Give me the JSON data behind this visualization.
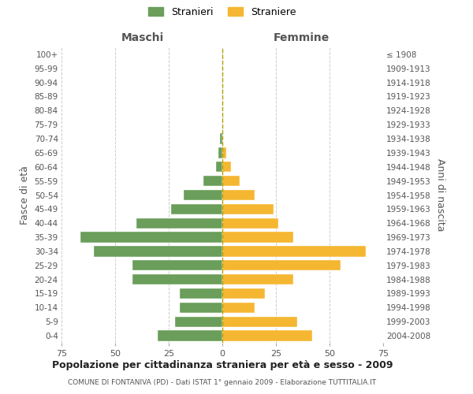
{
  "age_groups_bottom_to_top": [
    "0-4",
    "5-9",
    "10-14",
    "15-19",
    "20-24",
    "25-29",
    "30-34",
    "35-39",
    "40-44",
    "45-49",
    "50-54",
    "55-59",
    "60-64",
    "65-69",
    "70-74",
    "75-79",
    "80-84",
    "85-89",
    "90-94",
    "95-99",
    "100+"
  ],
  "birth_years_bottom_to_top": [
    "2004-2008",
    "1999-2003",
    "1994-1998",
    "1989-1993",
    "1984-1988",
    "1979-1983",
    "1974-1978",
    "1969-1973",
    "1964-1968",
    "1959-1963",
    "1954-1958",
    "1949-1953",
    "1944-1948",
    "1939-1943",
    "1934-1938",
    "1929-1933",
    "1924-1928",
    "1919-1923",
    "1914-1918",
    "1909-1913",
    "≤ 1908"
  ],
  "maschi_bottom_to_top": [
    30,
    22,
    20,
    20,
    42,
    42,
    60,
    66,
    40,
    24,
    18,
    9,
    3,
    2,
    1,
    0,
    0,
    0,
    0,
    0,
    0
  ],
  "femmine_bottom_to_top": [
    42,
    35,
    15,
    20,
    33,
    55,
    67,
    33,
    26,
    24,
    15,
    8,
    4,
    2,
    0,
    0,
    0,
    0,
    0,
    0,
    0
  ],
  "maschi_color": "#6a9e5a",
  "femmine_color": "#f5b731",
  "title": "Popolazione per cittadinanza straniera per età e sesso - 2009",
  "subtitle": "COMUNE DI FONTANIVA (PD) - Dati ISTAT 1° gennaio 2009 - Elaborazione TUTTITALIA.IT",
  "label_maschi": "Maschi",
  "label_femmine": "Femmine",
  "ylabel_left": "Fasce di età",
  "ylabel_right": "Anni di nascita",
  "legend_stranieri": "Stranieri",
  "legend_straniere": "Straniere",
  "xlim": 75,
  "background_color": "#ffffff",
  "grid_color": "#cccccc"
}
